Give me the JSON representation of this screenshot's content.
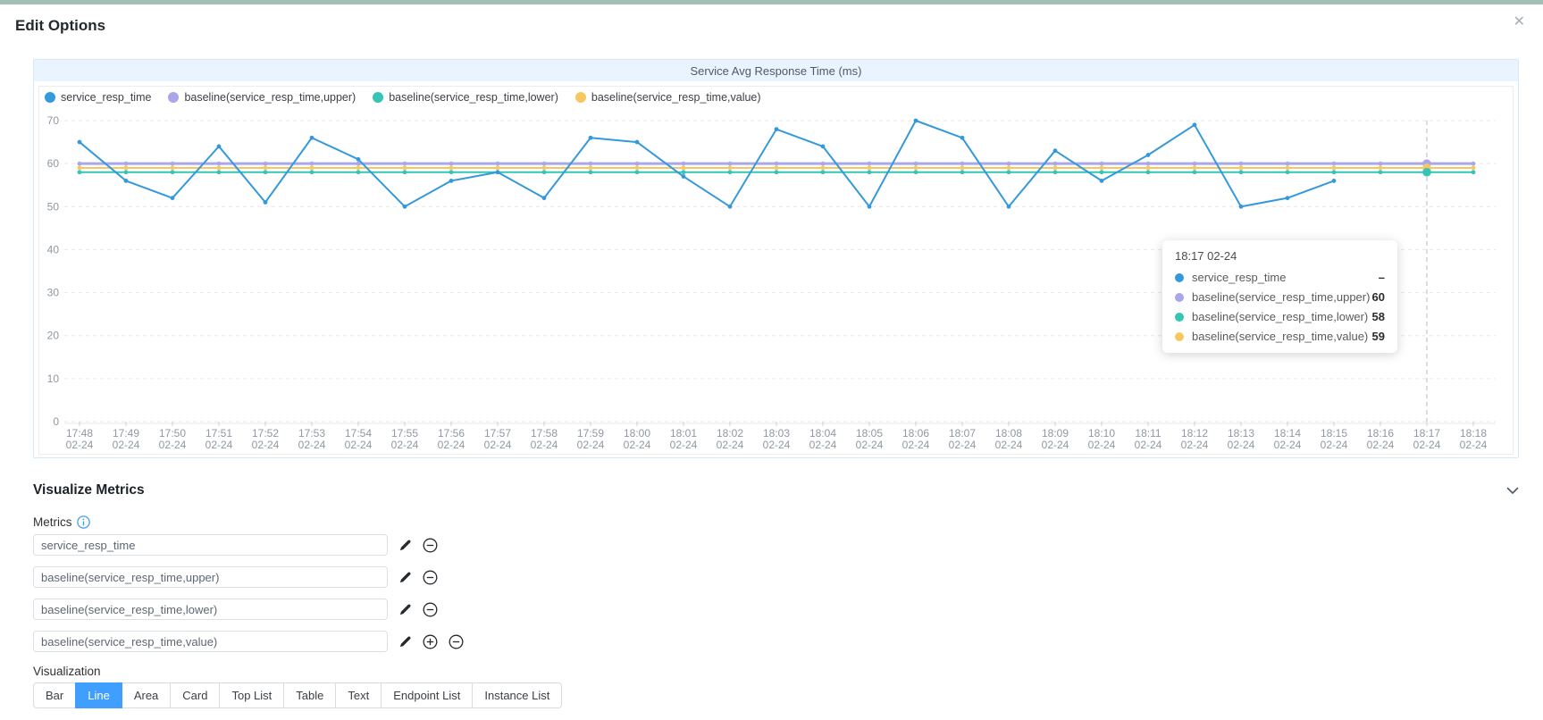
{
  "page": {
    "title": "Edit Options",
    "close_label": "✕",
    "top_border_color": "#a4bfb3"
  },
  "chart": {
    "header_title": "Service Avg Response Time (ms)",
    "tooltip": {
      "title": "18:17 02-24",
      "rows": [
        {
          "name": "service_resp_time",
          "color": "#3499db",
          "value": "–"
        },
        {
          "name": "baseline(service_resp_time,upper)",
          "color": "#a9a6e9",
          "value": "60"
        },
        {
          "name": "baseline(service_resp_time,lower)",
          "color": "#34c5b5",
          "value": "58"
        },
        {
          "name": "baseline(service_resp_time,value)",
          "color": "#f6c85f",
          "value": "59"
        }
      ]
    }
  },
  "chart_data": {
    "type": "line",
    "title": "Service Avg Response Time (ms)",
    "x_times": [
      "17:48",
      "17:49",
      "17:50",
      "17:51",
      "17:52",
      "17:53",
      "17:54",
      "17:55",
      "17:56",
      "17:57",
      "17:58",
      "17:59",
      "18:00",
      "18:01",
      "18:02",
      "18:03",
      "18:04",
      "18:05",
      "18:06",
      "18:07",
      "18:08",
      "18:09",
      "18:10",
      "18:11",
      "18:12",
      "18:13",
      "18:14",
      "18:15",
      "18:16",
      "18:17",
      "18:18"
    ],
    "x_date": "02-24",
    "ylim": [
      0,
      70
    ],
    "ytick_step": 10,
    "grid": "horizontal-dashed",
    "legend_position": "top-left",
    "hover_index": 29,
    "series": [
      {
        "name": "service_resp_time",
        "color": "#3499db",
        "width": 2,
        "values": [
          65,
          56,
          52,
          64,
          51,
          66,
          61,
          50,
          56,
          58,
          52,
          66,
          65,
          57,
          50,
          68,
          64,
          50,
          70,
          66,
          50,
          63,
          56,
          62,
          69,
          50,
          52,
          56,
          null,
          null,
          null
        ]
      },
      {
        "name": "baseline(service_resp_time,upper)",
        "color": "#a9a6e9",
        "width": 3,
        "values": [
          60,
          60,
          60,
          60,
          60,
          60,
          60,
          60,
          60,
          60,
          60,
          60,
          60,
          60,
          60,
          60,
          60,
          60,
          60,
          60,
          60,
          60,
          60,
          60,
          60,
          60,
          60,
          60,
          60,
          60,
          60
        ]
      },
      {
        "name": "baseline(service_resp_time,lower)",
        "color": "#34c5b5",
        "width": 2,
        "values": [
          58,
          58,
          58,
          58,
          58,
          58,
          58,
          58,
          58,
          58,
          58,
          58,
          58,
          58,
          58,
          58,
          58,
          58,
          58,
          58,
          58,
          58,
          58,
          58,
          58,
          58,
          58,
          58,
          58,
          58,
          58
        ]
      },
      {
        "name": "baseline(service_resp_time,value)",
        "color": "#f6c85f",
        "width": 2,
        "values": [
          59,
          59,
          59,
          59,
          59,
          59,
          59,
          59,
          59,
          59,
          59,
          59,
          59,
          59,
          59,
          59,
          59,
          59,
          59,
          59,
          59,
          59,
          59,
          59,
          59,
          59,
          59,
          59,
          59,
          59,
          59
        ]
      }
    ]
  },
  "sections": {
    "visualize_metrics_title": "Visualize Metrics",
    "metrics": {
      "label": "Metrics",
      "rows": [
        {
          "value": "service_resp_time",
          "actions": [
            "edit",
            "remove"
          ]
        },
        {
          "value": "baseline(service_resp_time,upper)",
          "actions": [
            "edit",
            "remove"
          ]
        },
        {
          "value": "baseline(service_resp_time,lower)",
          "actions": [
            "edit",
            "remove"
          ]
        },
        {
          "value": "baseline(service_resp_time,value)",
          "actions": [
            "edit",
            "add",
            "remove"
          ]
        }
      ]
    },
    "visualization": {
      "label": "Visualization",
      "options": [
        "Bar",
        "Line",
        "Area",
        "Card",
        "Top List",
        "Table",
        "Text",
        "Endpoint List",
        "Instance List"
      ],
      "selected": "Line"
    }
  }
}
